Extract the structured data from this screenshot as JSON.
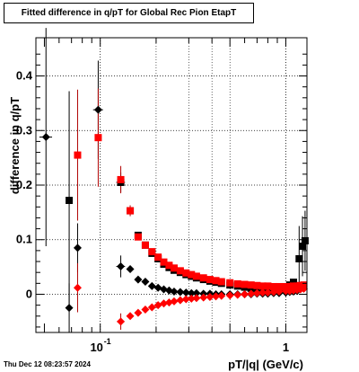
{
  "title": "Fitted difference in q/pT for Global Rec Pion EtapT",
  "timestamp": "Thu Dec 12 08:23:57 2024",
  "chart_data": {
    "type": "scatter",
    "title": "Fitted difference in q/pT for Global Rec Pion EtapT",
    "xlabel": "pT/|q| (GeV/c)",
    "ylabel": "difference in q/pT",
    "xscale": "log",
    "xlim": [
      0.045,
      1.3
    ],
    "ylim": [
      -0.07,
      0.47
    ],
    "xticks": [
      {
        "value": 0.1,
        "label": "10",
        "exponent": "-1"
      },
      {
        "value": 1,
        "label": "1",
        "exponent": ""
      }
    ],
    "yticks": [
      {
        "value": 0,
        "label": "0"
      },
      {
        "value": 0.1,
        "label": "0.1"
      },
      {
        "value": 0.2,
        "label": "0.2"
      },
      {
        "value": 0.3,
        "label": "0.3"
      },
      {
        "value": 0.4,
        "label": "0.4"
      }
    ],
    "grid": true,
    "colors": {
      "black": "#000000",
      "red": "#ff0000",
      "errbar_red": "#b00000"
    },
    "series": [
      {
        "marker": "diamond",
        "color": "#000000",
        "points": [
          {
            "x": 0.051,
            "y": 0.288,
            "yerr": 0.2,
            "xerr": 0.004
          },
          {
            "x": 0.068,
            "y": -0.025,
            "yerr": 0.045
          },
          {
            "x": 0.0755,
            "y": 0.085,
            "yerr": 0.045
          },
          {
            "x": 0.0975,
            "y": 0.338,
            "yerr": 0.09,
            "xerr": 0.006
          },
          {
            "x": 0.129,
            "y": 0.051,
            "yerr": 0.02,
            "xerr": 0.007
          },
          {
            "x": 0.145,
            "y": 0.046,
            "yerr": 0.005
          },
          {
            "x": 0.16,
            "y": 0.027
          },
          {
            "x": 0.175,
            "y": 0.023
          },
          {
            "x": 0.19,
            "y": 0.015
          },
          {
            "x": 0.205,
            "y": 0.012
          },
          {
            "x": 0.22,
            "y": 0.009
          },
          {
            "x": 0.235,
            "y": 0.007
          },
          {
            "x": 0.25,
            "y": 0.005
          },
          {
            "x": 0.27,
            "y": 0.004
          },
          {
            "x": 0.29,
            "y": 0.003
          },
          {
            "x": 0.31,
            "y": 0.002
          },
          {
            "x": 0.33,
            "y": 0.002
          },
          {
            "x": 0.36,
            "y": 0.001
          },
          {
            "x": 0.39,
            "y": 0.001
          },
          {
            "x": 0.42,
            "y": 0.0
          },
          {
            "x": 0.45,
            "y": 0.0
          },
          {
            "x": 0.5,
            "y": 0.0
          },
          {
            "x": 0.55,
            "y": 0.0
          },
          {
            "x": 0.6,
            "y": 0.0
          },
          {
            "x": 0.65,
            "y": 0.0
          },
          {
            "x": 0.7,
            "y": 0.001
          },
          {
            "x": 0.75,
            "y": 0.001
          },
          {
            "x": 0.8,
            "y": 0.001
          },
          {
            "x": 0.86,
            "y": 0.002
          },
          {
            "x": 0.92,
            "y": 0.002
          },
          {
            "x": 1.0,
            "y": 0.003
          },
          {
            "x": 1.05,
            "y": 0.004
          },
          {
            "x": 1.1,
            "y": 0.005
          },
          {
            "x": 1.15,
            "y": 0.006
          }
        ]
      },
      {
        "marker": "square",
        "color": "#000000",
        "points": [
          {
            "x": 0.068,
            "y": 0.172,
            "yerr": 0.2
          },
          {
            "x": 0.129,
            "y": 0.205,
            "yerr": 0.018,
            "xerr": 0.007
          },
          {
            "x": 0.145,
            "y": 0.153
          },
          {
            "x": 0.16,
            "y": 0.108
          },
          {
            "x": 0.175,
            "y": 0.09
          },
          {
            "x": 0.19,
            "y": 0.075
          },
          {
            "x": 0.205,
            "y": 0.065
          },
          {
            "x": 0.22,
            "y": 0.055
          },
          {
            "x": 0.235,
            "y": 0.049
          },
          {
            "x": 0.25,
            "y": 0.044
          },
          {
            "x": 0.27,
            "y": 0.04
          },
          {
            "x": 0.29,
            "y": 0.036
          },
          {
            "x": 0.31,
            "y": 0.033
          },
          {
            "x": 0.33,
            "y": 0.03
          },
          {
            "x": 0.36,
            "y": 0.027
          },
          {
            "x": 0.39,
            "y": 0.024
          },
          {
            "x": 0.42,
            "y": 0.022
          },
          {
            "x": 0.45,
            "y": 0.02
          },
          {
            "x": 0.5,
            "y": 0.017
          },
          {
            "x": 0.55,
            "y": 0.015
          },
          {
            "x": 0.6,
            "y": 0.013
          },
          {
            "x": 0.65,
            "y": 0.011
          },
          {
            "x": 0.7,
            "y": 0.01
          },
          {
            "x": 0.75,
            "y": 0.009
          },
          {
            "x": 0.8,
            "y": 0.008
          },
          {
            "x": 0.86,
            "y": 0.008
          },
          {
            "x": 0.92,
            "y": 0.009
          },
          {
            "x": 1.0,
            "y": 0.012
          },
          {
            "x": 1.05,
            "y": 0.017
          },
          {
            "x": 1.1,
            "y": 0.022
          },
          {
            "x": 1.18,
            "y": 0.065,
            "yerr": 0.06
          },
          {
            "x": 1.23,
            "y": 0.088,
            "yerr": 0.055
          },
          {
            "x": 1.27,
            "y": 0.098,
            "yerr": 0.055
          }
        ]
      },
      {
        "marker": "square",
        "color": "#ff0000",
        "points": [
          {
            "x": 0.0755,
            "y": 0.255,
            "yerr": 0.12
          },
          {
            "x": 0.0975,
            "y": 0.287,
            "yerr": 0.09,
            "xerr": 0.004
          },
          {
            "x": 0.129,
            "y": 0.21,
            "yerr": 0.025
          },
          {
            "x": 0.145,
            "y": 0.153,
            "yerr": 0.01
          },
          {
            "x": 0.16,
            "y": 0.105
          },
          {
            "x": 0.175,
            "y": 0.09
          },
          {
            "x": 0.19,
            "y": 0.078
          },
          {
            "x": 0.205,
            "y": 0.068
          },
          {
            "x": 0.22,
            "y": 0.059
          },
          {
            "x": 0.235,
            "y": 0.053
          },
          {
            "x": 0.25,
            "y": 0.048
          },
          {
            "x": 0.27,
            "y": 0.043
          },
          {
            "x": 0.29,
            "y": 0.039
          },
          {
            "x": 0.31,
            "y": 0.036
          },
          {
            "x": 0.33,
            "y": 0.033
          },
          {
            "x": 0.36,
            "y": 0.03
          },
          {
            "x": 0.39,
            "y": 0.027
          },
          {
            "x": 0.42,
            "y": 0.025
          },
          {
            "x": 0.45,
            "y": 0.023
          },
          {
            "x": 0.5,
            "y": 0.021
          },
          {
            "x": 0.55,
            "y": 0.019
          },
          {
            "x": 0.6,
            "y": 0.018
          },
          {
            "x": 0.65,
            "y": 0.017
          },
          {
            "x": 0.7,
            "y": 0.016
          },
          {
            "x": 0.75,
            "y": 0.015
          },
          {
            "x": 0.8,
            "y": 0.015
          },
          {
            "x": 0.86,
            "y": 0.014
          },
          {
            "x": 0.92,
            "y": 0.014
          },
          {
            "x": 1.0,
            "y": 0.014
          },
          {
            "x": 1.05,
            "y": 0.014
          },
          {
            "x": 1.1,
            "y": 0.015
          },
          {
            "x": 1.15,
            "y": 0.015
          },
          {
            "x": 1.2,
            "y": 0.016
          },
          {
            "x": 1.25,
            "y": 0.017
          }
        ]
      },
      {
        "marker": "diamond",
        "color": "#ff0000",
        "points": [
          {
            "x": 0.0755,
            "y": 0.012,
            "yerr": 0.045
          },
          {
            "x": 0.129,
            "y": -0.05,
            "yerr": 0.015,
            "xerr": 0.006
          },
          {
            "x": 0.145,
            "y": -0.04
          },
          {
            "x": 0.16,
            "y": -0.034
          },
          {
            "x": 0.175,
            "y": -0.028
          },
          {
            "x": 0.19,
            "y": -0.024
          },
          {
            "x": 0.205,
            "y": -0.02
          },
          {
            "x": 0.22,
            "y": -0.017
          },
          {
            "x": 0.235,
            "y": -0.015
          },
          {
            "x": 0.25,
            "y": -0.013
          },
          {
            "x": 0.27,
            "y": -0.011
          },
          {
            "x": 0.29,
            "y": -0.009
          },
          {
            "x": 0.31,
            "y": -0.008
          },
          {
            "x": 0.33,
            "y": -0.007
          },
          {
            "x": 0.36,
            "y": -0.006
          },
          {
            "x": 0.39,
            "y": -0.005
          },
          {
            "x": 0.42,
            "y": -0.004
          },
          {
            "x": 0.45,
            "y": -0.003
          },
          {
            "x": 0.5,
            "y": -0.002
          },
          {
            "x": 0.55,
            "y": -0.001
          },
          {
            "x": 0.6,
            "y": 0.0
          },
          {
            "x": 0.65,
            "y": 0.001
          },
          {
            "x": 0.7,
            "y": 0.002
          },
          {
            "x": 0.75,
            "y": 0.003
          },
          {
            "x": 0.8,
            "y": 0.003
          },
          {
            "x": 0.86,
            "y": 0.004
          },
          {
            "x": 0.92,
            "y": 0.005
          },
          {
            "x": 1.0,
            "y": 0.006
          },
          {
            "x": 1.05,
            "y": 0.006
          },
          {
            "x": 1.1,
            "y": 0.007
          },
          {
            "x": 1.15,
            "y": 0.008
          },
          {
            "x": 1.2,
            "y": 0.009
          },
          {
            "x": 1.25,
            "y": 0.01
          }
        ]
      }
    ]
  }
}
